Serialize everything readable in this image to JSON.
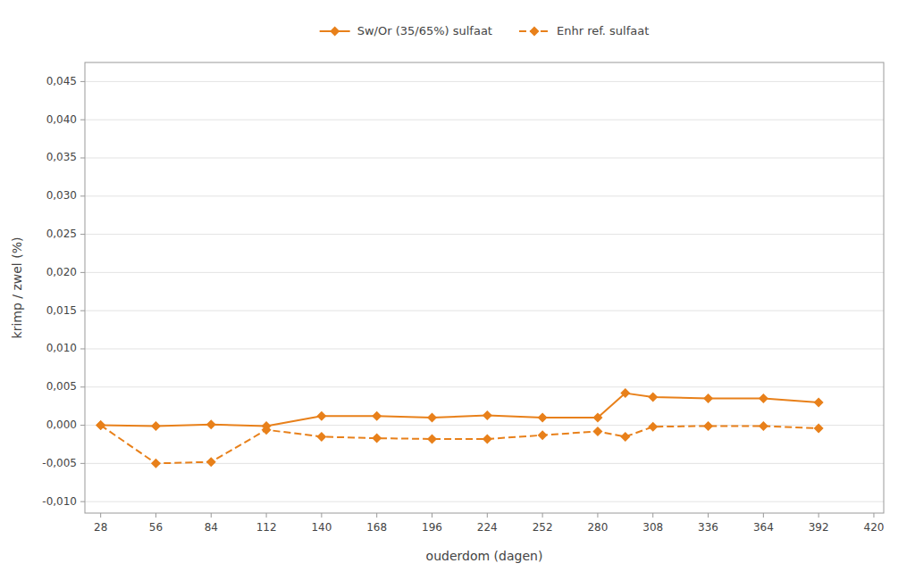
{
  "chart_data": {
    "type": "line",
    "x": [
      28,
      56,
      84,
      112,
      140,
      168,
      196,
      224,
      252,
      280,
      294,
      308,
      336,
      364,
      392
    ],
    "series": [
      {
        "name": "Sw/Or (35/65%) sulfaat",
        "color": "#E8801A",
        "line_style": "solid",
        "marker": "diamond",
        "values": [
          0.0,
          -0.0001,
          0.0001,
          -0.0001,
          0.0012,
          0.0012,
          0.001,
          0.0013,
          0.001,
          0.001,
          0.0042,
          0.0037,
          0.0035,
          0.0035,
          0.003
        ]
      },
      {
        "name": "Enhr ref. sulfaat",
        "color": "#E8801A",
        "line_style": "dashed",
        "marker": "diamond",
        "values": [
          0.0,
          -0.005,
          -0.0048,
          -0.0006,
          -0.0015,
          -0.0017,
          -0.0018,
          -0.0018,
          -0.0013,
          -0.0008,
          -0.0015,
          -0.0002,
          -0.0001,
          -0.0001,
          -0.0004
        ]
      }
    ],
    "xlabel": "ouderdom (dagen)",
    "ylabel": "krimp / zwel (%)",
    "xlim": [
      20,
      425
    ],
    "ylim": [
      -0.0115,
      0.0475
    ],
    "xticks": [
      28,
      56,
      84,
      112,
      140,
      168,
      196,
      224,
      252,
      280,
      308,
      336,
      364,
      392,
      420
    ],
    "yticks": [
      {
        "value": -0.01,
        "label": "-0,010"
      },
      {
        "value": -0.005,
        "label": "-0,005"
      },
      {
        "value": 0.0,
        "label": "0,000"
      },
      {
        "value": 0.005,
        "label": "0,005"
      },
      {
        "value": 0.01,
        "label": "0,010"
      },
      {
        "value": 0.015,
        "label": "0,015"
      },
      {
        "value": 0.02,
        "label": "0,020"
      },
      {
        "value": 0.025,
        "label": "0,025"
      },
      {
        "value": 0.03,
        "label": "0,030"
      },
      {
        "value": 0.035,
        "label": "0,035"
      },
      {
        "value": 0.04,
        "label": "0,040"
      },
      {
        "value": 0.045,
        "label": "0,045"
      }
    ],
    "grid": true,
    "legend": "top"
  }
}
